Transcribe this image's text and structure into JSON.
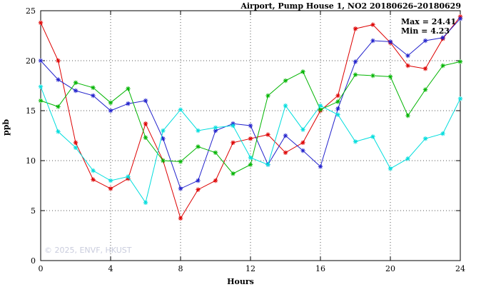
{
  "header": {
    "title": "Airport, Pump House 1, NO2 20180626–20180629"
  },
  "annotations": {
    "max_label": "Max = 24.41",
    "min_label": "Min =  4.23"
  },
  "watermark": "© 2025, ENVF, HKUST",
  "chart_data": {
    "type": "line",
    "title": "Airport, Pump House 1, NO2 20180626–20180629",
    "xlabel": "Hours",
    "ylabel": "ppb",
    "xlim": [
      0,
      24
    ],
    "ylim": [
      0,
      25
    ],
    "xticks": [
      0,
      4,
      8,
      12,
      16,
      20,
      24
    ],
    "yticks": [
      0,
      5,
      10,
      15,
      20,
      25
    ],
    "grid": true,
    "legend_position": "none",
    "max_value": 24.41,
    "min_value": 4.23,
    "x": [
      0,
      1,
      2,
      3,
      4,
      5,
      6,
      7,
      8,
      9,
      10,
      11,
      12,
      13,
      14,
      15,
      16,
      17,
      18,
      19,
      20,
      21,
      22,
      23,
      24
    ],
    "series": [
      {
        "name": "series-red",
        "color": "#dd0000",
        "values": [
          23.8,
          20.0,
          11.8,
          8.1,
          7.2,
          8.2,
          13.7,
          10.0,
          4.23,
          7.1,
          8.0,
          11.8,
          12.2,
          12.6,
          10.8,
          11.8,
          15.0,
          16.5,
          23.2,
          23.6,
          21.8,
          19.5,
          19.2,
          22.2,
          24.41
        ]
      },
      {
        "name": "series-blue",
        "color": "#2222cc",
        "values": [
          20.0,
          18.1,
          17.0,
          16.5,
          15.0,
          15.7,
          16.0,
          12.2,
          7.2,
          8.0,
          13.0,
          13.7,
          13.5,
          9.6,
          12.5,
          11.0,
          9.4,
          15.2,
          19.9,
          22.0,
          21.9,
          20.5,
          22.0,
          22.3,
          24.2
        ]
      },
      {
        "name": "series-green",
        "color": "#00b400",
        "values": [
          16.0,
          15.4,
          17.8,
          17.3,
          15.8,
          17.2,
          12.3,
          10.0,
          9.9,
          11.4,
          10.8,
          8.7,
          9.6,
          16.5,
          18.0,
          18.9,
          15.1,
          15.9,
          18.6,
          18.5,
          18.4,
          14.5,
          17.1,
          19.5,
          19.9
        ]
      },
      {
        "name": "series-cyan",
        "color": "#00dddd",
        "values": [
          17.4,
          12.9,
          11.3,
          9.0,
          8.0,
          8.4,
          5.8,
          13.0,
          15.1,
          13.0,
          13.3,
          13.5,
          10.3,
          9.6,
          15.5,
          13.1,
          15.5,
          14.6,
          11.9,
          12.4,
          9.2,
          10.2,
          12.2,
          12.7,
          16.2
        ]
      }
    ]
  }
}
